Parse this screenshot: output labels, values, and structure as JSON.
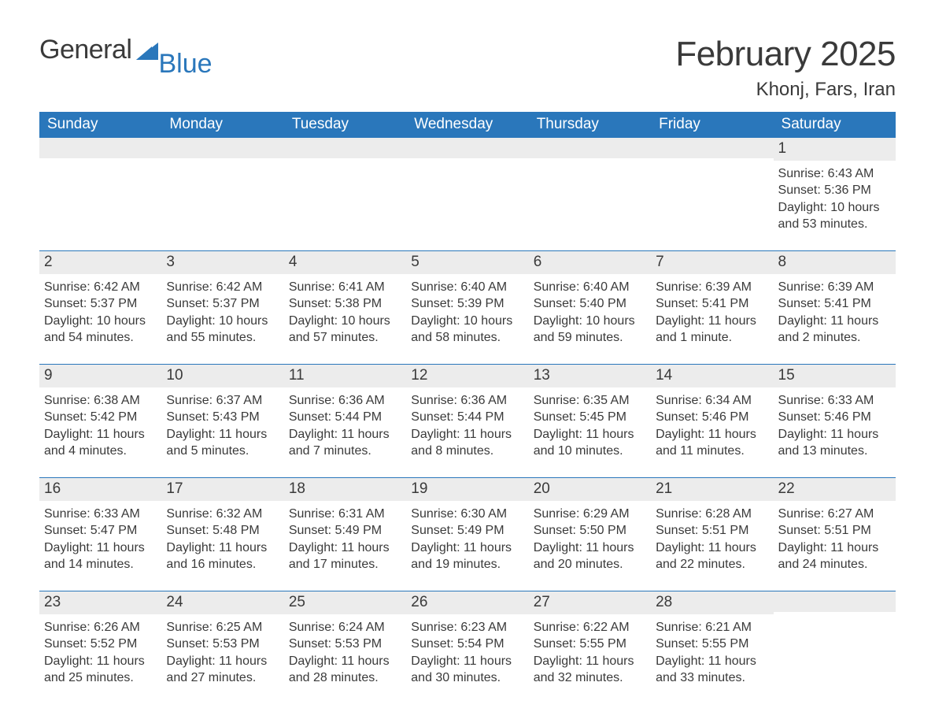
{
  "logo": {
    "word1": "General",
    "word2": "Blue"
  },
  "header": {
    "month_title": "February 2025",
    "location": "Khonj, Fars, Iran"
  },
  "colors": {
    "accent": "#2a77bb",
    "header_text": "#ffffff",
    "daybar_bg": "#ececec",
    "body_text": "#3a3a3a",
    "background": "#ffffff"
  },
  "typography": {
    "title_fontsize_pt": 33,
    "location_fontsize_pt": 18,
    "dayheader_fontsize_pt": 14,
    "daynum_fontsize_pt": 14,
    "body_fontsize_pt": 12,
    "font_family": "Segoe UI / Arial"
  },
  "calendar": {
    "type": "calendar-table",
    "columns": 7,
    "rows": 5,
    "day_headers": [
      "Sunday",
      "Monday",
      "Tuesday",
      "Wednesday",
      "Thursday",
      "Friday",
      "Saturday"
    ],
    "weeks": [
      [
        null,
        null,
        null,
        null,
        null,
        null,
        {
          "n": "1",
          "sunrise": "Sunrise: 6:43 AM",
          "sunset": "Sunset: 5:36 PM",
          "daylight": "Daylight: 10 hours and 53 minutes."
        }
      ],
      [
        {
          "n": "2",
          "sunrise": "Sunrise: 6:42 AM",
          "sunset": "Sunset: 5:37 PM",
          "daylight": "Daylight: 10 hours and 54 minutes."
        },
        {
          "n": "3",
          "sunrise": "Sunrise: 6:42 AM",
          "sunset": "Sunset: 5:37 PM",
          "daylight": "Daylight: 10 hours and 55 minutes."
        },
        {
          "n": "4",
          "sunrise": "Sunrise: 6:41 AM",
          "sunset": "Sunset: 5:38 PM",
          "daylight": "Daylight: 10 hours and 57 minutes."
        },
        {
          "n": "5",
          "sunrise": "Sunrise: 6:40 AM",
          "sunset": "Sunset: 5:39 PM",
          "daylight": "Daylight: 10 hours and 58 minutes."
        },
        {
          "n": "6",
          "sunrise": "Sunrise: 6:40 AM",
          "sunset": "Sunset: 5:40 PM",
          "daylight": "Daylight: 10 hours and 59 minutes."
        },
        {
          "n": "7",
          "sunrise": "Sunrise: 6:39 AM",
          "sunset": "Sunset: 5:41 PM",
          "daylight": "Daylight: 11 hours and 1 minute."
        },
        {
          "n": "8",
          "sunrise": "Sunrise: 6:39 AM",
          "sunset": "Sunset: 5:41 PM",
          "daylight": "Daylight: 11 hours and 2 minutes."
        }
      ],
      [
        {
          "n": "9",
          "sunrise": "Sunrise: 6:38 AM",
          "sunset": "Sunset: 5:42 PM",
          "daylight": "Daylight: 11 hours and 4 minutes."
        },
        {
          "n": "10",
          "sunrise": "Sunrise: 6:37 AM",
          "sunset": "Sunset: 5:43 PM",
          "daylight": "Daylight: 11 hours and 5 minutes."
        },
        {
          "n": "11",
          "sunrise": "Sunrise: 6:36 AM",
          "sunset": "Sunset: 5:44 PM",
          "daylight": "Daylight: 11 hours and 7 minutes."
        },
        {
          "n": "12",
          "sunrise": "Sunrise: 6:36 AM",
          "sunset": "Sunset: 5:44 PM",
          "daylight": "Daylight: 11 hours and 8 minutes."
        },
        {
          "n": "13",
          "sunrise": "Sunrise: 6:35 AM",
          "sunset": "Sunset: 5:45 PM",
          "daylight": "Daylight: 11 hours and 10 minutes."
        },
        {
          "n": "14",
          "sunrise": "Sunrise: 6:34 AM",
          "sunset": "Sunset: 5:46 PM",
          "daylight": "Daylight: 11 hours and 11 minutes."
        },
        {
          "n": "15",
          "sunrise": "Sunrise: 6:33 AM",
          "sunset": "Sunset: 5:46 PM",
          "daylight": "Daylight: 11 hours and 13 minutes."
        }
      ],
      [
        {
          "n": "16",
          "sunrise": "Sunrise: 6:33 AM",
          "sunset": "Sunset: 5:47 PM",
          "daylight": "Daylight: 11 hours and 14 minutes."
        },
        {
          "n": "17",
          "sunrise": "Sunrise: 6:32 AM",
          "sunset": "Sunset: 5:48 PM",
          "daylight": "Daylight: 11 hours and 16 minutes."
        },
        {
          "n": "18",
          "sunrise": "Sunrise: 6:31 AM",
          "sunset": "Sunset: 5:49 PM",
          "daylight": "Daylight: 11 hours and 17 minutes."
        },
        {
          "n": "19",
          "sunrise": "Sunrise: 6:30 AM",
          "sunset": "Sunset: 5:49 PM",
          "daylight": "Daylight: 11 hours and 19 minutes."
        },
        {
          "n": "20",
          "sunrise": "Sunrise: 6:29 AM",
          "sunset": "Sunset: 5:50 PM",
          "daylight": "Daylight: 11 hours and 20 minutes."
        },
        {
          "n": "21",
          "sunrise": "Sunrise: 6:28 AM",
          "sunset": "Sunset: 5:51 PM",
          "daylight": "Daylight: 11 hours and 22 minutes."
        },
        {
          "n": "22",
          "sunrise": "Sunrise: 6:27 AM",
          "sunset": "Sunset: 5:51 PM",
          "daylight": "Daylight: 11 hours and 24 minutes."
        }
      ],
      [
        {
          "n": "23",
          "sunrise": "Sunrise: 6:26 AM",
          "sunset": "Sunset: 5:52 PM",
          "daylight": "Daylight: 11 hours and 25 minutes."
        },
        {
          "n": "24",
          "sunrise": "Sunrise: 6:25 AM",
          "sunset": "Sunset: 5:53 PM",
          "daylight": "Daylight: 11 hours and 27 minutes."
        },
        {
          "n": "25",
          "sunrise": "Sunrise: 6:24 AM",
          "sunset": "Sunset: 5:53 PM",
          "daylight": "Daylight: 11 hours and 28 minutes."
        },
        {
          "n": "26",
          "sunrise": "Sunrise: 6:23 AM",
          "sunset": "Sunset: 5:54 PM",
          "daylight": "Daylight: 11 hours and 30 minutes."
        },
        {
          "n": "27",
          "sunrise": "Sunrise: 6:22 AM",
          "sunset": "Sunset: 5:55 PM",
          "daylight": "Daylight: 11 hours and 32 minutes."
        },
        {
          "n": "28",
          "sunrise": "Sunrise: 6:21 AM",
          "sunset": "Sunset: 5:55 PM",
          "daylight": "Daylight: 11 hours and 33 minutes."
        },
        null
      ]
    ]
  }
}
